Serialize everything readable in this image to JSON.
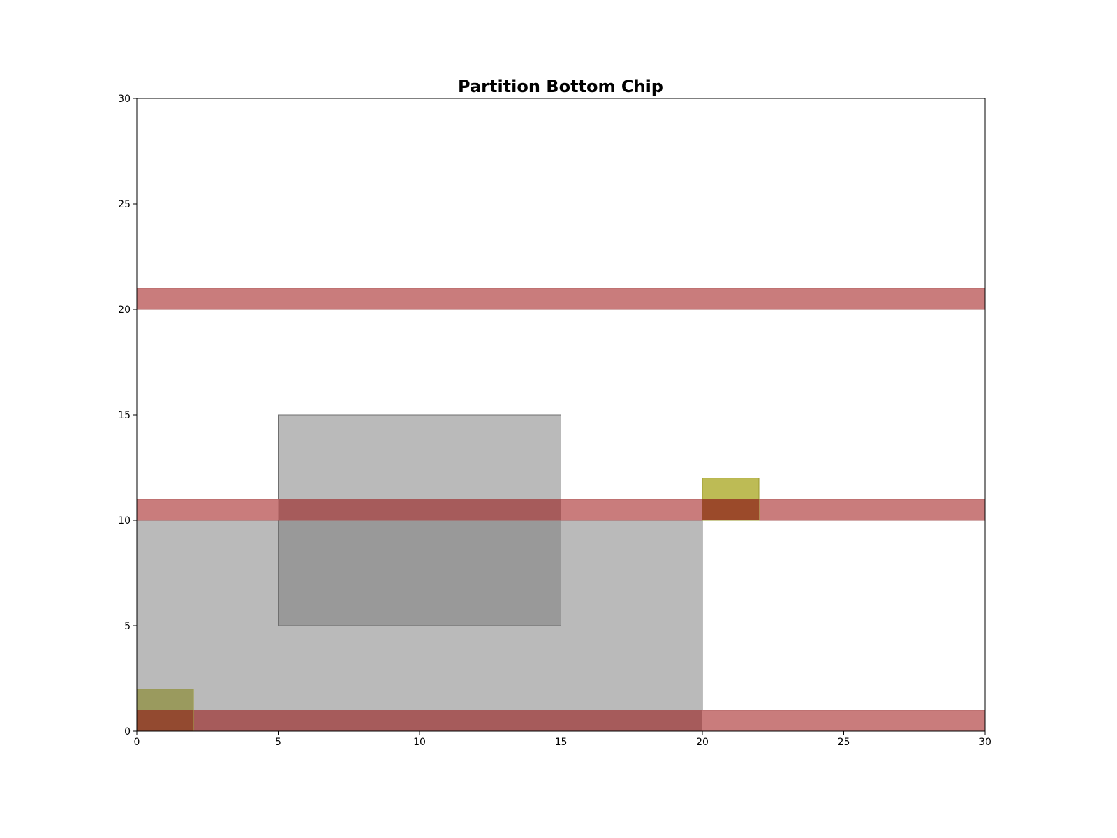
{
  "chart_data": {
    "type": "rectangles",
    "title": "Partition Bottom Chip",
    "xlabel": "",
    "ylabel": "",
    "xlim": [
      0,
      30
    ],
    "ylim": [
      0,
      30
    ],
    "x_ticks": [
      0,
      5,
      10,
      15,
      20,
      25,
      30
    ],
    "y_ticks": [
      0,
      5,
      10,
      15,
      20,
      25,
      30
    ],
    "grid": false,
    "rects": [
      {
        "group": "block",
        "x0": 0,
        "y0": 0,
        "x1": 20,
        "y1": 10,
        "fill": "#bababa",
        "stroke": "#7f7f7f"
      },
      {
        "group": "block",
        "x0": 5,
        "y0": 5,
        "x1": 15,
        "y1": 15,
        "fill": "#999999",
        "stroke": "#6f6f6f",
        "overlap_fill": "#999999"
      },
      {
        "group": "strip",
        "x0": 0,
        "y0": 0,
        "x1": 30,
        "y1": 1,
        "fill": "#c97c7c",
        "stroke": "#a95b5b"
      },
      {
        "group": "strip",
        "x0": 0,
        "y0": 10,
        "x1": 30,
        "y1": 11,
        "fill": "#c97c7c",
        "stroke": "#a95b5b"
      },
      {
        "group": "strip",
        "x0": 0,
        "y0": 20,
        "x1": 30,
        "y1": 21,
        "fill": "#c97c7c",
        "stroke": "#a95b5b"
      },
      {
        "group": "pad",
        "x0": 0,
        "y0": 0,
        "x1": 2,
        "y1": 2,
        "fill": "#bdbb55",
        "stroke": "#9a9a2e"
      },
      {
        "group": "pad",
        "x0": 20,
        "y0": 10,
        "x1": 22,
        "y1": 12,
        "fill": "#bdbb55",
        "stroke": "#9a9a2e"
      }
    ],
    "colors": {
      "block": "#bababa",
      "block_overlap": "#999999",
      "strip": "#c97c7c",
      "strip_on_block": "#a65b5b",
      "pad": "#bdbb55",
      "pad_on_block": "#9a9a5e",
      "pad_on_strip": "#9b4a2a",
      "pad_on_strip_on_block": "#934a30"
    }
  }
}
